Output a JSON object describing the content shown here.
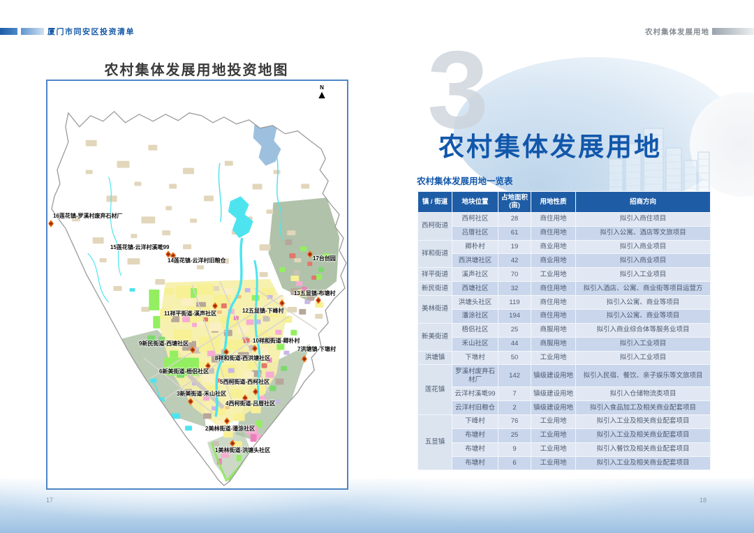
{
  "page_left": {
    "breadcrumb": "厦门市同安区投资清单",
    "map_title": "农村集体发展用地投资地图",
    "north_label": "N",
    "map_markers": [
      "1美林街道-洪塘头社区",
      "2美林街道-潘涂社区",
      "3新美街道-禾山社区",
      "4西柯街道-吕厝社区",
      "5西柯街道-西柯社区",
      "6新美街道-梧侣社区",
      "7洪塘镇-下墩村",
      "8祥和街道-西洪塘社区",
      "9新民街道-西塘社区",
      "10祥和街道-卿朴村",
      "11祥平街道-溪声社区",
      "12五显镇-下峰村",
      "13五显镇-布塘村",
      "14莲花镇-云洋村旧粮仓",
      "15莲花镇-云洋村溪墘99",
      "16莲花镇-罗溪村废弃石材厂",
      "17台创园"
    ],
    "page_number": "17"
  },
  "page_right": {
    "header_label": "农村集体发展用地",
    "section_number": "3",
    "section_title": "农村集体发展用地",
    "table_caption": "农村集体发展用地一览表",
    "table": {
      "headers": [
        "镇 / 街道",
        "地块位置",
        "占地面积\n(亩)",
        "用地性质",
        "招商方向"
      ],
      "groups": [
        {
          "name": "西柯街道",
          "rows": [
            {
              "location": "西柯社区",
              "area": "28",
              "land_type": "商住用地",
              "direction": "拟引入商住项目"
            },
            {
              "location": "吕厝社区",
              "area": "61",
              "land_type": "商住用地",
              "direction": "拟引入公寓、酒店等文旅项目"
            }
          ]
        },
        {
          "name": "祥和街道",
          "rows": [
            {
              "location": "卿朴村",
              "area": "19",
              "land_type": "商业用地",
              "direction": "拟引入商业项目"
            },
            {
              "location": "西洪塘社区",
              "area": "42",
              "land_type": "商业用地",
              "direction": "拟引入商业项目"
            }
          ]
        },
        {
          "name": "祥平街道",
          "rows": [
            {
              "location": "溪声社区",
              "area": "70",
              "land_type": "工业用地",
              "direction": "拟引入工业项目"
            }
          ]
        },
        {
          "name": "新民街道",
          "rows": [
            {
              "location": "西塘社区",
              "area": "32",
              "land_type": "商住用地",
              "direction": "拟引入酒店、公寓、商业街等项目运营方"
            }
          ]
        },
        {
          "name": "美林街道",
          "rows": [
            {
              "location": "洪塘头社区",
              "area": "119",
              "land_type": "商住用地",
              "direction": "拟引入公寓、商业等项目"
            },
            {
              "location": "潘涂社区",
              "area": "194",
              "land_type": "商住用地",
              "direction": "拟引入公寓、商业等项目"
            }
          ]
        },
        {
          "name": "新美街道",
          "rows": [
            {
              "location": "梧侣社区",
              "area": "25",
              "land_type": "商服用地",
              "direction": "拟引入商业综合体等服务业项目"
            },
            {
              "location": "禾山社区",
              "area": "44",
              "land_type": "商服用地",
              "direction": "拟引入工业项目"
            }
          ]
        },
        {
          "name": "洪塘镇",
          "rows": [
            {
              "location": "下墩村",
              "area": "50",
              "land_type": "工业用地",
              "direction": "拟引入工业项目"
            }
          ]
        },
        {
          "name": "莲花镇",
          "rows": [
            {
              "location": "罗溪村废弃石材厂",
              "area": "142",
              "land_type": "镇级建设用地",
              "direction": "拟引入民宿、餐饮、亲子娱乐等文旅项目"
            },
            {
              "location": "云洋村溪墘99",
              "area": "7",
              "land_type": "镇级建设用地",
              "direction": "拟引入仓储物流类项目"
            },
            {
              "location": "云洋村旧粮仓",
              "area": "2",
              "land_type": "镇级建设用地",
              "direction": "拟引入食品加工及相关商业配套项目"
            }
          ]
        },
        {
          "name": "五显镇",
          "rows": [
            {
              "location": "下峰村",
              "area": "76",
              "land_type": "工业用地",
              "direction": "拟引入工业及相关商业配套项目"
            },
            {
              "location": "布塘村",
              "area": "25",
              "land_type": "工业用地",
              "direction": "拟引入工业及相关商业配套项目"
            },
            {
              "location": "布塘村",
              "area": "9",
              "land_type": "工业用地",
              "direction": "拟引入餐饮及相关商业配套项目"
            },
            {
              "location": "布塘村",
              "area": "6",
              "land_type": "工业用地",
              "direction": "拟引入工业及相关商业配套项目"
            }
          ]
        }
      ]
    },
    "page_number": "18"
  },
  "colors": {
    "accent_blue": "#1257ab",
    "table_header_bg": "#1e5da6",
    "row_light": "#e2e8f3",
    "row_dark": "#c9d6ec",
    "marker_orange": "#f08a1d",
    "water_cyan": "#4ee4ef"
  }
}
